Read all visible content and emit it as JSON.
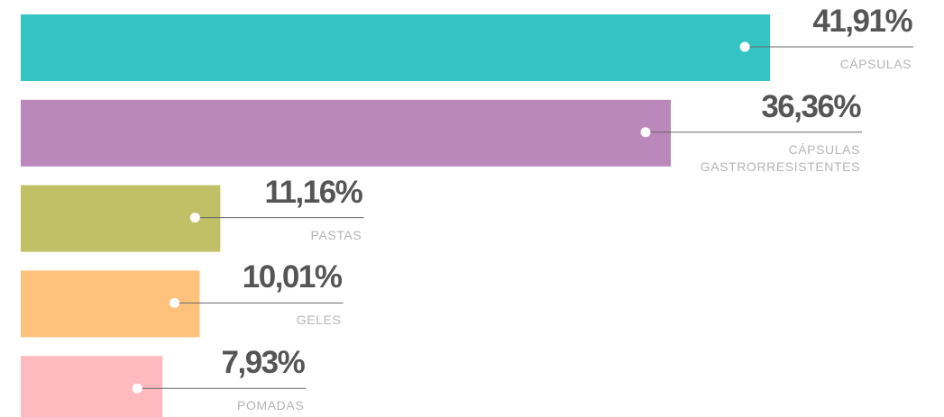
{
  "chart_data": {
    "type": "bar",
    "orientation": "horizontal",
    "categories": [
      "CÁPSULAS",
      "CÁPSULAS GASTRORRESISTENTES",
      "PASTAS",
      "GELES",
      "POMADAS"
    ],
    "values": [
      41.91,
      36.36,
      11.16,
      10.01,
      7.93
    ],
    "value_labels": [
      "41,91%",
      "36,36%",
      "11,16%",
      "10,01%",
      "7,93%"
    ],
    "colors": [
      "#35c4c4",
      "#bb88bc",
      "#c1c066",
      "#ffc27c",
      "#ffbac0"
    ]
  }
}
